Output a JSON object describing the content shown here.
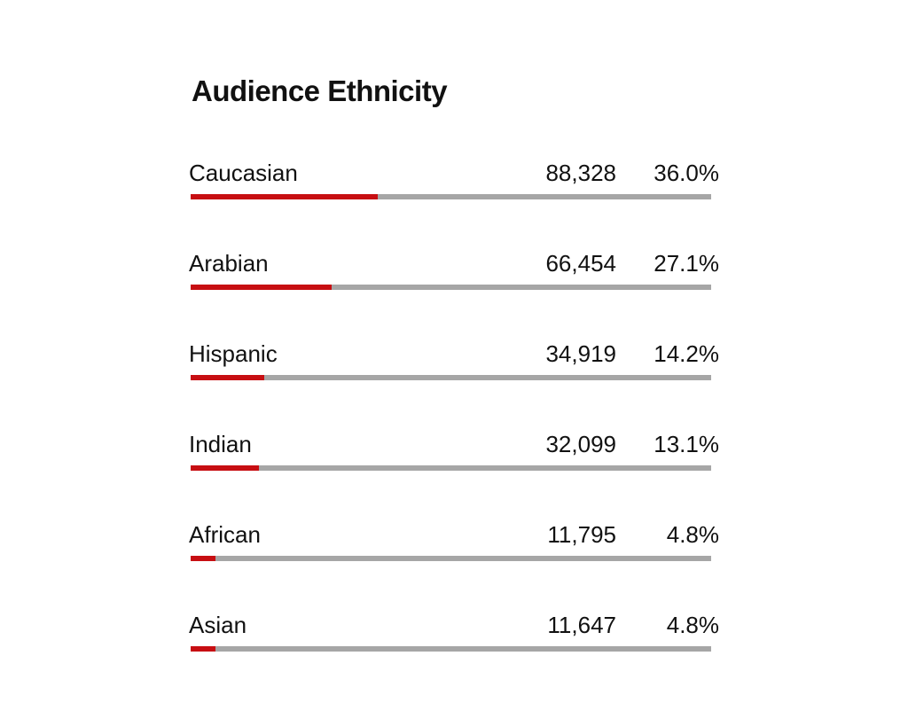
{
  "chart_data": {
    "type": "bar",
    "title": "Audience Ethnicity",
    "categories": [
      "Caucasian",
      "Arabian",
      "Hispanic",
      "Indian",
      "African",
      "Asian"
    ],
    "counts": [
      "88,328",
      "66,454",
      "34,919",
      "32,099",
      "11,795",
      "11,647"
    ],
    "percent_labels": [
      "36.0%",
      "27.1%",
      "14.2%",
      "13.1%",
      "4.8%",
      "4.8%"
    ],
    "values": [
      36.0,
      27.1,
      14.2,
      13.1,
      4.8,
      4.8
    ],
    "xlim": [
      0,
      100
    ],
    "colors": {
      "fill": "#c70e12",
      "track": "#a6a6a6",
      "text": "#111111"
    }
  }
}
